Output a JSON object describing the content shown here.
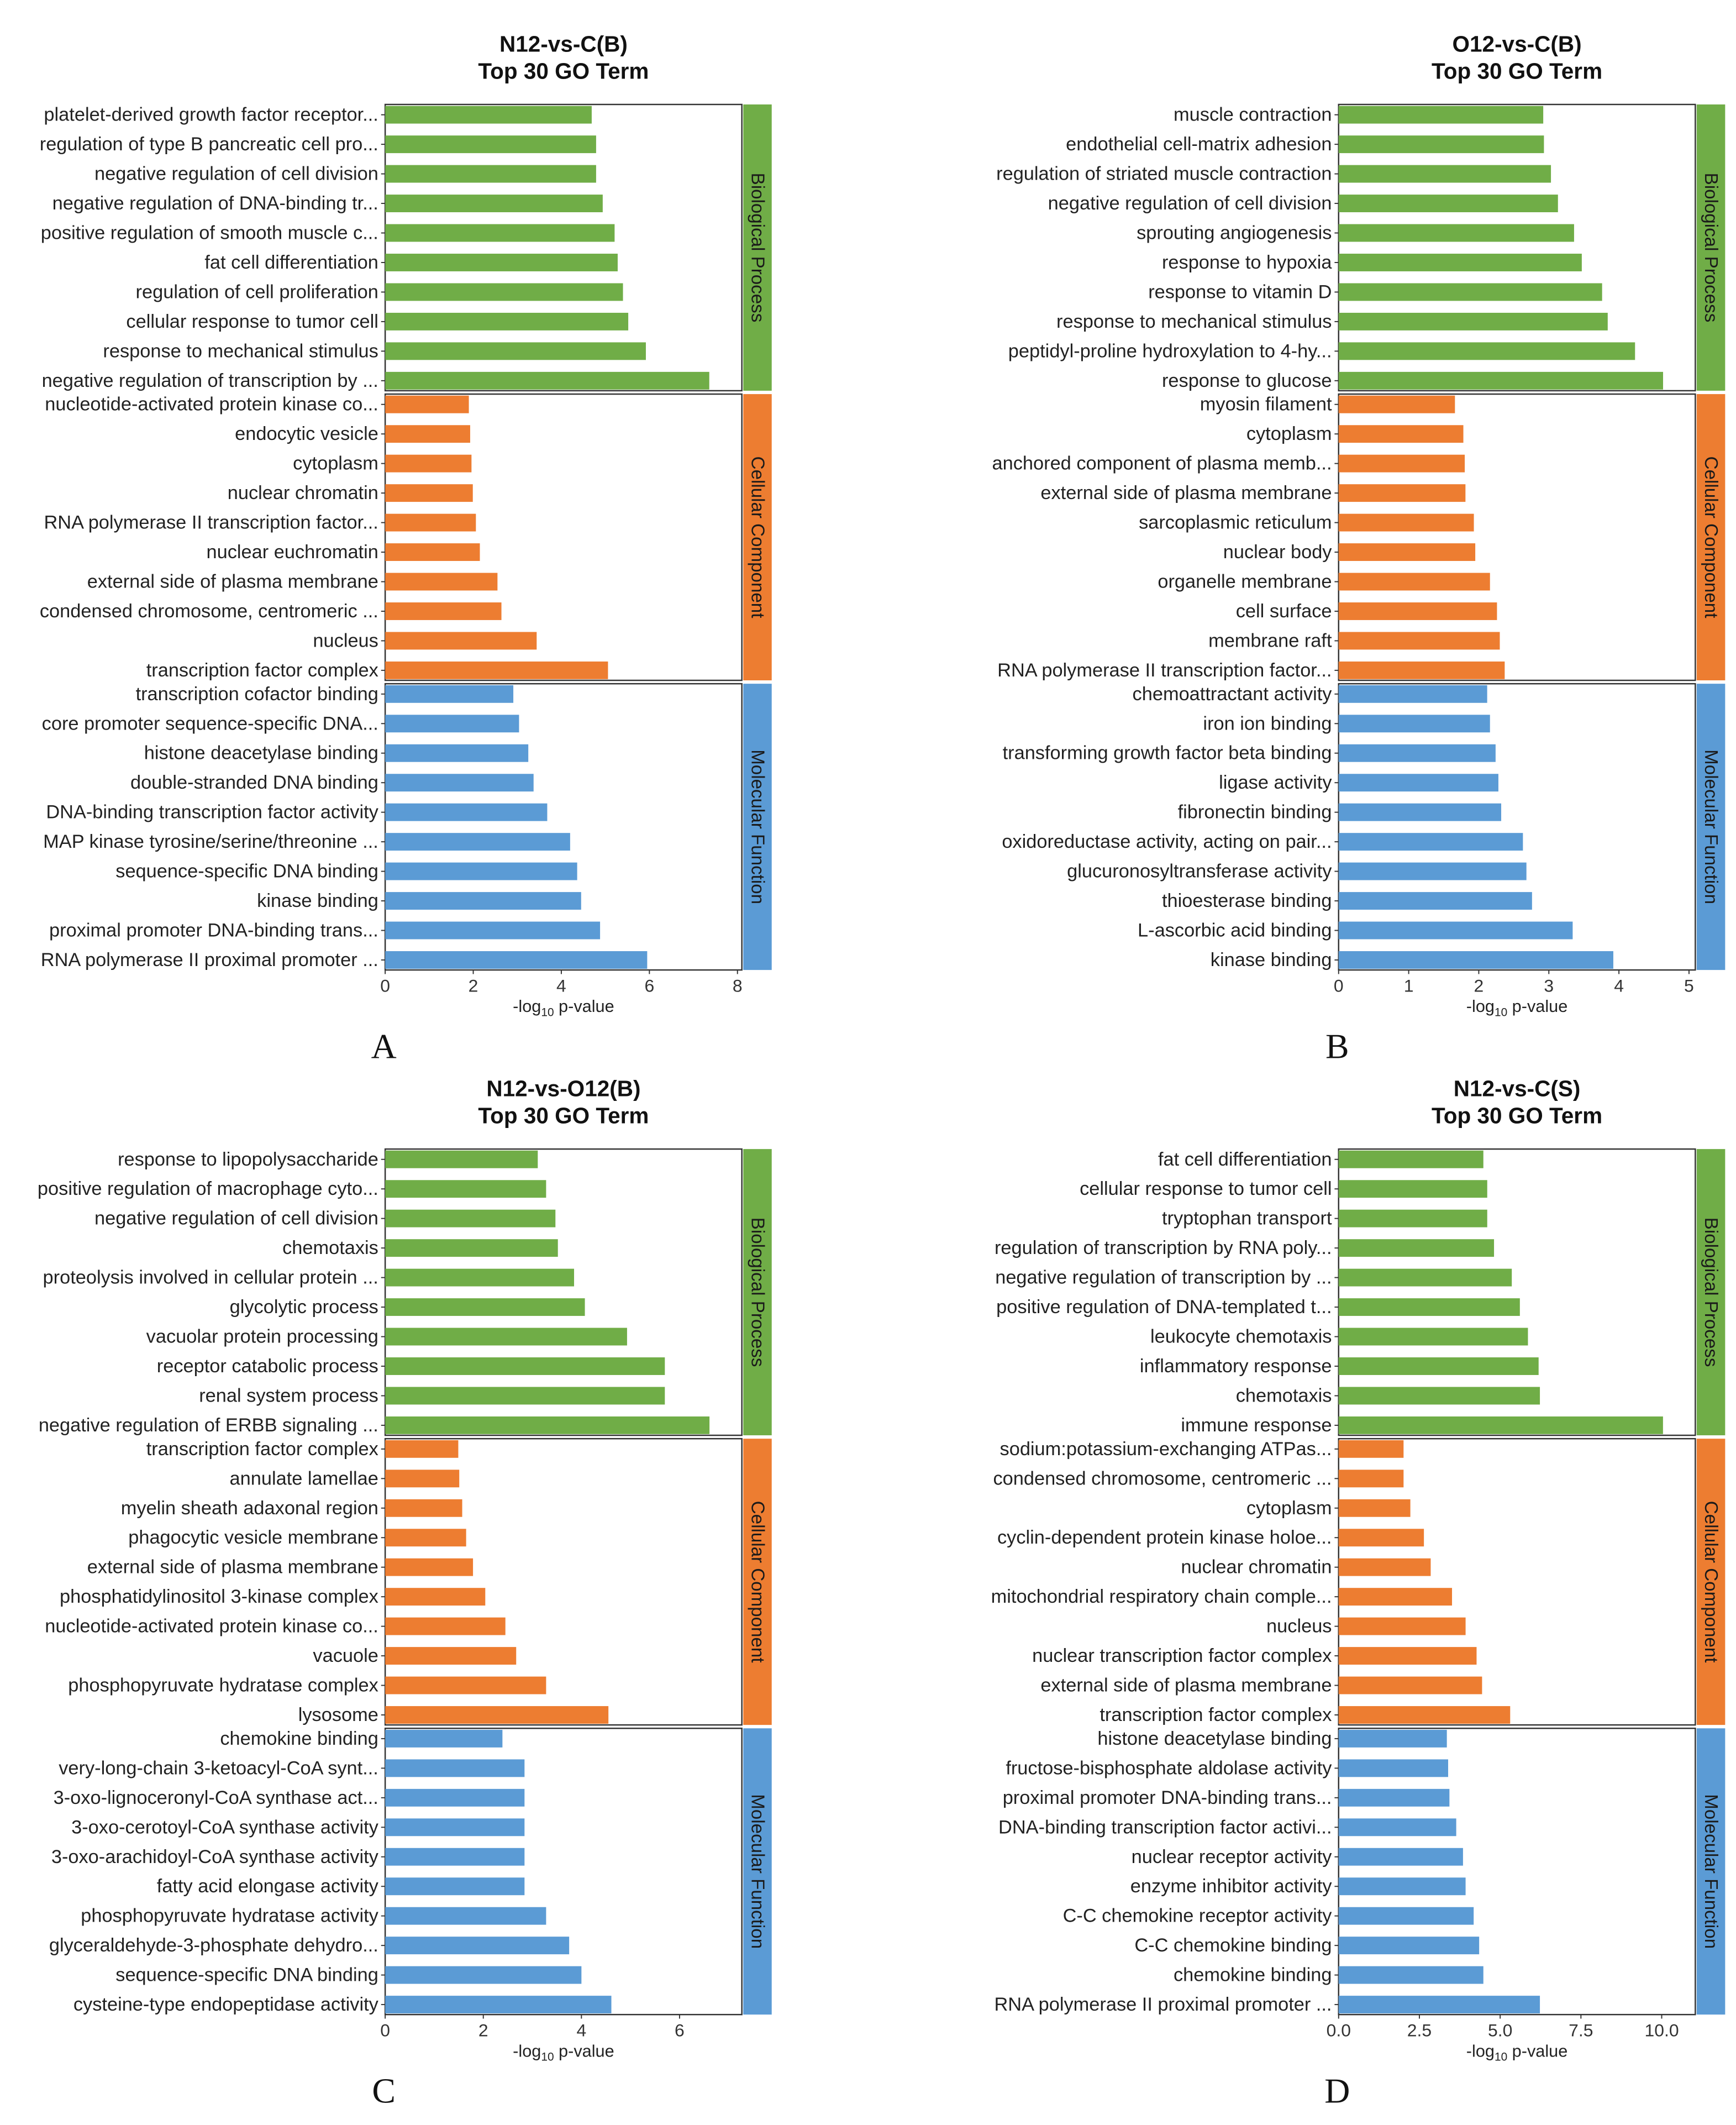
{
  "chart_data": [
    {
      "type": "bar",
      "panel_label": "A",
      "title": "N12-vs-C(B)",
      "subtitle": "Top 30 GO Term",
      "xlabel": "-log10 p-value",
      "xlim": [
        0,
        8.1
      ],
      "xticks": [
        0,
        2,
        4,
        6,
        8
      ],
      "xtick_labels": [
        "0",
        "2",
        "4",
        "6",
        "8"
      ],
      "groups": [
        {
          "name": "Biological Process",
          "color": "#70AD47",
          "terms": [
            "platelet-derived growth factor receptor...",
            "regulation of type B pancreatic cell pro...",
            "negative regulation of cell division",
            "negative regulation of DNA-binding tr...",
            "positive regulation of smooth muscle c...",
            "fat cell differentiation",
            "regulation of cell proliferation",
            "cellular response to tumor cell",
            "response to mechanical stimulus",
            "negative regulation of transcription by ..."
          ],
          "values": [
            4.69,
            4.79,
            4.79,
            4.94,
            5.21,
            5.28,
            5.4,
            5.52,
            5.92,
            7.36
          ]
        },
        {
          "name": "Cellular Component",
          "color": "#ED7D31",
          "terms": [
            "nucleotide-activated protein kinase co...",
            "endocytic vesicle",
            "cytoplasm",
            "nuclear chromatin",
            "RNA polymerase II transcription factor...",
            "nuclear euchromatin",
            "external side of plasma membrane",
            "condensed chromosome, centromeric ...",
            "nucleus",
            "transcription factor complex"
          ],
          "values": [
            1.9,
            1.93,
            1.96,
            1.99,
            2.06,
            2.15,
            2.55,
            2.64,
            3.44,
            5.06
          ]
        },
        {
          "name": "Molecular Function",
          "color": "#5B9BD5",
          "terms": [
            "transcription cofactor binding",
            "core promoter sequence-specific DNA...",
            "histone deacetylase binding",
            "double-stranded DNA binding",
            "DNA-binding transcription factor activity",
            "MAP kinase tyrosine/serine/threonine ...",
            "sequence-specific DNA binding",
            "kinase binding",
            "proximal promoter DNA-binding trans...",
            "RNA polymerase II proximal promoter ..."
          ],
          "values": [
            2.91,
            3.04,
            3.25,
            3.37,
            3.68,
            4.2,
            4.36,
            4.45,
            4.88,
            5.95
          ]
        }
      ]
    },
    {
      "type": "bar",
      "panel_label": "B",
      "title": "O12-vs-C(B)",
      "subtitle": "Top 30 GO Term",
      "xlabel": "-log10 p-value",
      "xlim": [
        0,
        5.09
      ],
      "xticks": [
        0,
        1,
        2,
        3,
        4,
        5
      ],
      "xtick_labels": [
        "0",
        "1",
        "2",
        "3",
        "4",
        "5"
      ],
      "groups": [
        {
          "name": "Biological Process",
          "color": "#70AD47",
          "terms": [
            "muscle contraction",
            "endothelial cell-matrix adhesion",
            "regulation of striated muscle contraction",
            "negative regulation of cell division",
            "sprouting angiogenesis",
            "response to hypoxia",
            "response to vitamin D",
            "response to mechanical stimulus",
            "peptidyl-proline hydroxylation to 4-hy...",
            "response to glucose"
          ],
          "values": [
            2.92,
            2.93,
            3.03,
            3.13,
            3.36,
            3.47,
            3.76,
            3.84,
            4.23,
            4.63
          ]
        },
        {
          "name": "Cellular Component",
          "color": "#ED7D31",
          "terms": [
            "myosin filament",
            "cytoplasm",
            "anchored component of plasma memb...",
            "external side of plasma membrane",
            "sarcoplasmic reticulum",
            "nuclear body",
            "organelle membrane",
            "cell surface",
            "membrane raft",
            "RNA polymerase II transcription factor..."
          ],
          "values": [
            1.66,
            1.78,
            1.8,
            1.81,
            1.93,
            1.95,
            2.16,
            2.26,
            2.3,
            2.37
          ]
        },
        {
          "name": "Molecular Function",
          "color": "#5B9BD5",
          "terms": [
            "chemoattractant activity",
            "iron ion binding",
            "transforming growth factor beta binding",
            "ligase activity",
            "fibronectin binding",
            "oxidoreductase activity, acting on pair...",
            "glucuronosyltransferase activity",
            "thioesterase binding",
            "L-ascorbic acid binding",
            "kinase binding"
          ],
          "values": [
            2.12,
            2.16,
            2.24,
            2.28,
            2.32,
            2.63,
            2.68,
            2.76,
            3.34,
            3.92
          ]
        }
      ]
    },
    {
      "type": "bar",
      "panel_label": "C",
      "title": "N12-vs-O12(B)",
      "subtitle": "Top 30 GO Term",
      "xlabel": "-log10 p-value",
      "xlim": [
        0,
        7.27
      ],
      "xticks": [
        0,
        2,
        4,
        6
      ],
      "xtick_labels": [
        "0",
        "2",
        "4",
        "6"
      ],
      "groups": [
        {
          "name": "Biological Process",
          "color": "#70AD47",
          "terms": [
            "response to lipopolysaccharide",
            "positive regulation of macrophage cyto...",
            "negative regulation of cell division",
            "chemotaxis",
            "proteolysis involved in cellular protein ...",
            "glycolytic process",
            "vacuolar protein processing",
            "receptor catabolic process",
            "renal system process",
            "negative regulation of ERBB signaling ..."
          ],
          "values": [
            3.11,
            3.28,
            3.47,
            3.52,
            3.85,
            4.07,
            4.93,
            5.7,
            5.7,
            6.61
          ]
        },
        {
          "name": "Cellular Component",
          "color": "#ED7D31",
          "terms": [
            "transcription factor complex",
            "annulate lamellae",
            "myelin sheath adaxonal region",
            "phagocytic vesicle membrane",
            "external side of plasma membrane",
            "phosphatidylinositol 3-kinase complex",
            "nucleotide-activated protein kinase co...",
            "vacuole",
            "phosphopyruvate hydratase complex",
            "lysosome"
          ],
          "values": [
            1.49,
            1.51,
            1.57,
            1.65,
            1.79,
            2.04,
            2.45,
            2.67,
            3.28,
            4.55
          ]
        },
        {
          "name": "Molecular Function",
          "color": "#5B9BD5",
          "terms": [
            "chemokine binding",
            "very-long-chain 3-ketoacyl-CoA synt...",
            "3-oxo-lignoceronyl-CoA synthase act...",
            "3-oxo-cerotoyl-CoA synthase activity",
            "3-oxo-arachidoyl-CoA synthase activity",
            "fatty acid elongase activity",
            "phosphopyruvate hydratase activity",
            "glyceraldehyde-3-phosphate dehydro...",
            "sequence-specific DNA binding",
            "cysteine-type endopeptidase activity"
          ],
          "values": [
            2.39,
            2.84,
            2.84,
            2.84,
            2.84,
            2.84,
            3.28,
            3.75,
            4.0,
            4.61
          ]
        }
      ]
    },
    {
      "type": "bar",
      "panel_label": "D",
      "title": "N12-vs-C(S)",
      "subtitle": "Top 30 GO Term",
      "xlabel": "-log10 p-value",
      "xlim": [
        0,
        11.04
      ],
      "xticks": [
        0,
        2.5,
        5,
        7.5,
        10
      ],
      "xtick_labels": [
        "0.0",
        "2.5",
        "5.0",
        "7.5",
        "10.0"
      ],
      "groups": [
        {
          "name": "Biological Process",
          "color": "#70AD47",
          "terms": [
            "fat cell differentiation",
            "cellular response to tumor cell",
            "tryptophan transport",
            "regulation of transcription by RNA poly...",
            "negative regulation of transcription by ...",
            "positive regulation of DNA-templated t...",
            "leukocyte chemotaxis",
            "inflammatory response",
            "chemotaxis",
            "immune response"
          ],
          "values": [
            4.48,
            4.6,
            4.6,
            4.81,
            5.36,
            5.61,
            5.86,
            6.19,
            6.23,
            10.04
          ]
        },
        {
          "name": "Cellular Component",
          "color": "#ED7D31",
          "terms": [
            "sodium:potassium-exchanging ATPas...",
            "condensed chromosome, centromeric ...",
            "cytoplasm",
            "cyclin-dependent protein kinase holoe...",
            "nuclear chromatin",
            "mitochondrial respiratory chain comple...",
            "nucleus",
            "nuclear transcription factor complex",
            "external side of plasma membrane",
            "transcription factor complex"
          ],
          "values": [
            2.01,
            2.01,
            2.22,
            2.64,
            2.85,
            3.51,
            3.93,
            4.27,
            4.44,
            5.31
          ]
        },
        {
          "name": "Molecular Function",
          "color": "#5B9BD5",
          "terms": [
            "histone deacetylase binding",
            "fructose-bisphosphate aldolase activity",
            "proximal promoter DNA-binding trans...",
            "DNA-binding transcription factor activi...",
            "nuclear receptor activity",
            "enzyme inhibitor activity",
            "C-C chemokine receptor activity",
            "C-C chemokine binding",
            "chemokine binding",
            "RNA polymerase II proximal promoter ..."
          ],
          "values": [
            3.35,
            3.39,
            3.43,
            3.64,
            3.85,
            3.93,
            4.18,
            4.35,
            4.48,
            6.23
          ]
        }
      ]
    }
  ]
}
